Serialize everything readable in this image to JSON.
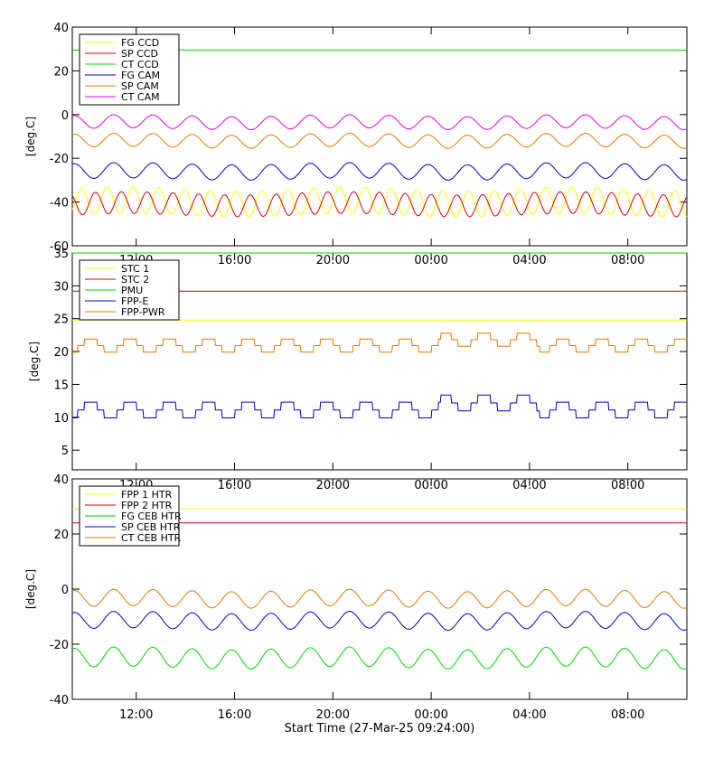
{
  "xaxis": {
    "title": "Start Time (27-Mar-25 09:24:00)",
    "tick_labels": [
      "12:00",
      "16:00",
      "20:00",
      "00:00",
      "04:00",
      "08:00"
    ],
    "tick_hours": [
      2.6,
      6.6,
      10.6,
      14.6,
      18.6,
      22.6
    ],
    "range_hours": [
      0,
      25
    ]
  },
  "chart_data": [
    {
      "type": "line",
      "ylabel": "[deg.C]",
      "ylim": [
        -60,
        40
      ],
      "yticks": [
        -60,
        -40,
        -20,
        0,
        20,
        40
      ],
      "legend_position": "top-left",
      "series": [
        {
          "name": "FG CCD",
          "color": "#ffff00",
          "kind": "osc",
          "mean": -40,
          "amp": 6,
          "period": 1.05,
          "phase": 0.9
        },
        {
          "name": "SP CCD",
          "color": "#d40000",
          "kind": "osc",
          "mean": -41,
          "amp": 5,
          "period": 1.05,
          "phase": 0.35
        },
        {
          "name": "CT CCD",
          "color": "#00d000",
          "kind": "flat",
          "mean": 29.5
        },
        {
          "name": "FG CAM",
          "color": "#0000c8",
          "kind": "osc",
          "mean": -26,
          "amp": 3.5,
          "period": 1.6,
          "phase": 0.2
        },
        {
          "name": "SP CAM",
          "color": "#e07800",
          "kind": "osc",
          "mean": -12,
          "amp": 3,
          "period": 1.6,
          "phase": 0.2
        },
        {
          "name": "CT CAM",
          "color": "#e000e0",
          "kind": "osc",
          "mean": -3.5,
          "amp": 3,
          "period": 1.6,
          "phase": 0.2
        }
      ]
    },
    {
      "type": "line",
      "ylabel": "[deg.C]",
      "ylim": [
        2,
        35
      ],
      "yticks": [
        5,
        10,
        15,
        20,
        25,
        30,
        35
      ],
      "legend_position": "top-left",
      "series": [
        {
          "name": "STC 1",
          "color": "#ffff00",
          "kind": "flat",
          "mean": 24.8
        },
        {
          "name": "STC 2",
          "color": "#d40000",
          "kind": "flat",
          "mean": 29.2
        },
        {
          "name": "PMU",
          "color": "#00d000",
          "kind": "flat",
          "mean": 35
        },
        {
          "name": "FPP-E",
          "color": "#0000c8",
          "kind": "step",
          "mean": 11.1,
          "amp": 1.2,
          "period": 1.6,
          "phase": 0.2
        },
        {
          "name": "FPP-PWR",
          "color": "#e07800",
          "kind": "step",
          "mean": 20.9,
          "amp": 1.0,
          "period": 1.6,
          "phase": 0.2
        }
      ]
    },
    {
      "type": "line",
      "ylabel": "[deg.C]",
      "ylim": [
        -40,
        40
      ],
      "yticks": [
        -40,
        -20,
        0,
        20,
        40
      ],
      "legend_position": "top-left",
      "series": [
        {
          "name": "FPP 1 HTR",
          "color": "#ffff00",
          "kind": "flat",
          "mean": 29
        },
        {
          "name": "FPP 2 HTR",
          "color": "#d40000",
          "kind": "flat",
          "mean": 24
        },
        {
          "name": "FG CEB HTR",
          "color": "#00d000",
          "kind": "osc",
          "mean": -25,
          "amp": 3.5,
          "period": 1.6,
          "phase": 0.2
        },
        {
          "name": "SP CEB HTR",
          "color": "#0000c8",
          "kind": "osc",
          "mean": -11.5,
          "amp": 3,
          "period": 1.6,
          "phase": 0.2
        },
        {
          "name": "CT CEB HTR",
          "color": "#e07800",
          "kind": "osc",
          "mean": -3.5,
          "amp": 3,
          "period": 1.6,
          "phase": 0.2
        }
      ]
    }
  ]
}
